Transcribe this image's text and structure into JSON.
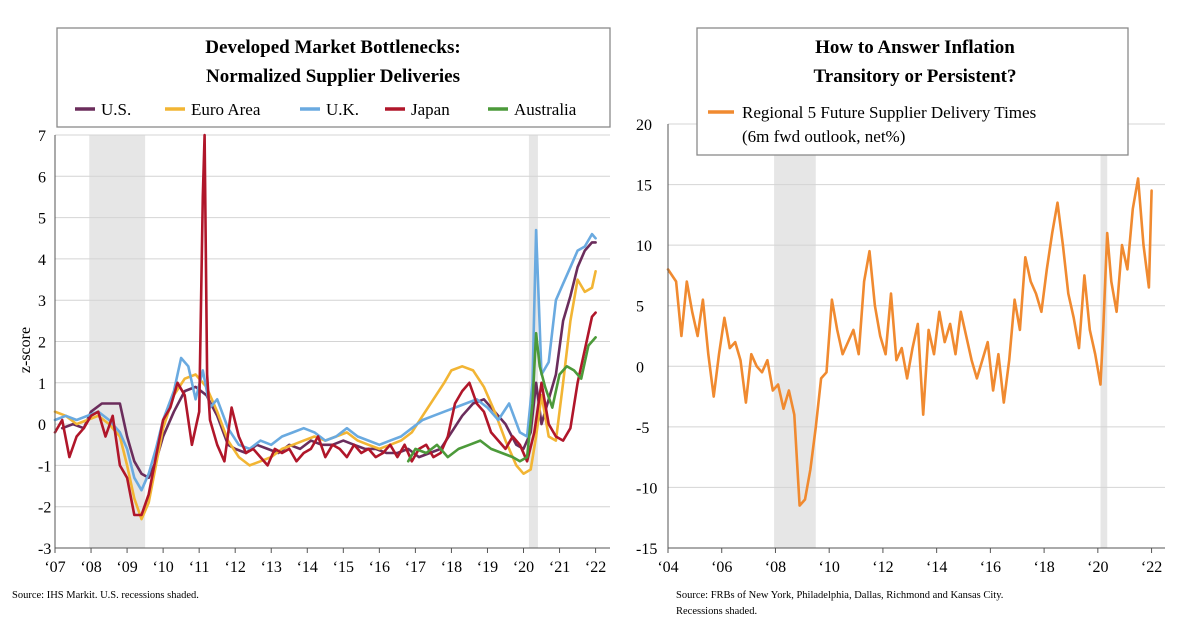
{
  "chart_data": [
    {
      "type": "line",
      "title": [
        "Developed Market Bottlenecks:",
        "Normalized Supplier Deliveries"
      ],
      "ylabel": "z-score",
      "xlabel": "",
      "xlim": [
        2007.0,
        2022.4
      ],
      "ylim": [
        -3,
        7
      ],
      "yticks": [
        -3,
        -2,
        -1,
        0,
        1,
        2,
        3,
        4,
        5,
        6,
        7
      ],
      "xtick_labels": [
        "‘07",
        "‘08",
        "‘09",
        "‘10",
        "‘11",
        "‘12",
        "‘13",
        "‘14",
        "‘15",
        "‘16",
        "‘17",
        "‘18",
        "‘19",
        "‘20",
        "‘21",
        "‘22"
      ],
      "xtick_values": [
        2007,
        2008,
        2009,
        2010,
        2011,
        2012,
        2013,
        2014,
        2015,
        2016,
        2017,
        2018,
        2019,
        2020,
        2021,
        2022
      ],
      "recessions": [
        [
          2007.95,
          2009.5
        ],
        [
          2020.15,
          2020.4
        ]
      ],
      "grid": true,
      "legend_position": "top",
      "source": "Source: IHS Markit. U.S. recessions shaded.",
      "series": [
        {
          "name": "U.S.",
          "color": "#6b2d5c",
          "x": [
            2007.2,
            2007.5,
            2007.8,
            2008.0,
            2008.3,
            2008.6,
            2008.8,
            2009.0,
            2009.2,
            2009.4,
            2009.6,
            2009.8,
            2010.0,
            2010.3,
            2010.6,
            2010.9,
            2011.2,
            2011.5,
            2011.8,
            2012.0,
            2012.3,
            2012.6,
            2012.9,
            2013.2,
            2013.5,
            2013.8,
            2014.1,
            2014.4,
            2014.7,
            2015.0,
            2015.3,
            2015.6,
            2015.9,
            2016.2,
            2016.5,
            2016.8,
            2017.1,
            2017.4,
            2017.7,
            2018.0,
            2018.3,
            2018.6,
            2018.9,
            2019.2,
            2019.5,
            2019.8,
            2020.0,
            2020.2,
            2020.35,
            2020.5,
            2020.7,
            2020.9,
            2021.1,
            2021.3,
            2021.5,
            2021.7,
            2021.9,
            2022.0
          ],
          "y": [
            -0.1,
            0.0,
            -0.1,
            0.3,
            0.5,
            0.5,
            0.5,
            -0.3,
            -0.9,
            -1.2,
            -1.3,
            -0.9,
            -0.3,
            0.3,
            0.8,
            0.9,
            0.7,
            0.2,
            -0.5,
            -0.6,
            -0.7,
            -0.5,
            -0.6,
            -0.7,
            -0.5,
            -0.6,
            -0.4,
            -0.5,
            -0.5,
            -0.4,
            -0.5,
            -0.6,
            -0.6,
            -0.7,
            -0.7,
            -0.6,
            -0.8,
            -0.7,
            -0.6,
            -0.2,
            0.2,
            0.5,
            0.6,
            0.3,
            0.0,
            -0.5,
            -0.6,
            -0.2,
            1.0,
            0.0,
            0.6,
            1.2,
            2.5,
            3.1,
            3.8,
            4.2,
            4.4,
            4.4
          ]
        },
        {
          "name": "Euro Area",
          "color": "#f2b534",
          "x": [
            2007.0,
            2007.3,
            2007.6,
            2007.9,
            2008.2,
            2008.5,
            2008.8,
            2009.0,
            2009.2,
            2009.4,
            2009.6,
            2009.8,
            2010.0,
            2010.3,
            2010.6,
            2010.9,
            2011.2,
            2011.5,
            2011.8,
            2012.1,
            2012.4,
            2012.7,
            2013.0,
            2013.3,
            2013.6,
            2013.9,
            2014.2,
            2014.5,
            2014.8,
            2015.1,
            2015.4,
            2015.7,
            2016.0,
            2016.3,
            2016.6,
            2016.9,
            2017.2,
            2017.5,
            2017.8,
            2018.0,
            2018.3,
            2018.6,
            2018.9,
            2019.2,
            2019.5,
            2019.8,
            2020.0,
            2020.2,
            2020.35,
            2020.5,
            2020.7,
            2020.9,
            2021.1,
            2021.3,
            2021.5,
            2021.7,
            2021.9,
            2022.0
          ],
          "y": [
            0.3,
            0.2,
            0.0,
            0.1,
            0.2,
            0.0,
            -0.3,
            -1.0,
            -1.8,
            -2.3,
            -1.9,
            -1.0,
            -0.1,
            0.7,
            1.1,
            1.2,
            0.9,
            0.3,
            -0.4,
            -0.8,
            -1.0,
            -0.9,
            -0.8,
            -0.6,
            -0.5,
            -0.4,
            -0.3,
            -0.4,
            -0.3,
            -0.2,
            -0.4,
            -0.5,
            -0.6,
            -0.5,
            -0.4,
            -0.2,
            0.2,
            0.6,
            1.0,
            1.3,
            1.4,
            1.3,
            0.9,
            0.3,
            -0.4,
            -1.0,
            -1.2,
            -1.1,
            -0.3,
            0.7,
            -0.3,
            -0.4,
            1.0,
            2.5,
            3.5,
            3.2,
            3.3,
            3.7
          ]
        },
        {
          "name": "U.K.",
          "color": "#6aaae0",
          "x": [
            2007.0,
            2007.3,
            2007.6,
            2007.9,
            2008.2,
            2008.5,
            2008.8,
            2009.0,
            2009.2,
            2009.4,
            2009.6,
            2009.8,
            2010.0,
            2010.3,
            2010.5,
            2010.7,
            2010.9,
            2011.1,
            2011.3,
            2011.5,
            2011.8,
            2012.1,
            2012.4,
            2012.7,
            2013.0,
            2013.3,
            2013.6,
            2013.9,
            2014.2,
            2014.5,
            2014.8,
            2015.1,
            2015.4,
            2015.7,
            2016.0,
            2016.3,
            2016.6,
            2016.9,
            2017.2,
            2017.5,
            2017.8,
            2018.1,
            2018.4,
            2018.7,
            2019.0,
            2019.3,
            2019.6,
            2019.9,
            2020.1,
            2020.25,
            2020.35,
            2020.5,
            2020.7,
            2020.9,
            2021.1,
            2021.3,
            2021.5,
            2021.7,
            2021.9,
            2022.0
          ],
          "y": [
            0.1,
            0.2,
            0.1,
            0.2,
            0.3,
            0.1,
            -0.2,
            -0.6,
            -1.3,
            -1.6,
            -1.2,
            -0.6,
            0.1,
            0.8,
            1.6,
            1.4,
            0.6,
            1.3,
            0.4,
            0.6,
            -0.1,
            -0.5,
            -0.6,
            -0.4,
            -0.5,
            -0.3,
            -0.2,
            -0.1,
            -0.2,
            -0.4,
            -0.3,
            -0.1,
            -0.3,
            -0.4,
            -0.5,
            -0.4,
            -0.3,
            -0.1,
            0.1,
            0.2,
            0.3,
            0.4,
            0.5,
            0.6,
            0.4,
            0.1,
            0.5,
            -0.2,
            -0.3,
            1.0,
            4.7,
            1.2,
            1.5,
            3.0,
            3.4,
            3.8,
            4.2,
            4.3,
            4.6,
            4.5
          ]
        },
        {
          "name": "Japan",
          "color": "#b0162a",
          "x": [
            2007.0,
            2007.2,
            2007.4,
            2007.6,
            2007.8,
            2008.0,
            2008.2,
            2008.4,
            2008.6,
            2008.8,
            2009.0,
            2009.2,
            2009.4,
            2009.6,
            2009.8,
            2010.0,
            2010.2,
            2010.4,
            2010.6,
            2010.8,
            2011.0,
            2011.1,
            2011.15,
            2011.22,
            2011.3,
            2011.5,
            2011.7,
            2011.9,
            2012.1,
            2012.3,
            2012.5,
            2012.7,
            2012.9,
            2013.1,
            2013.3,
            2013.5,
            2013.7,
            2013.9,
            2014.1,
            2014.3,
            2014.5,
            2014.7,
            2014.9,
            2015.1,
            2015.3,
            2015.5,
            2015.7,
            2015.9,
            2016.1,
            2016.3,
            2016.5,
            2016.7,
            2016.9,
            2017.1,
            2017.3,
            2017.5,
            2017.7,
            2017.9,
            2018.1,
            2018.3,
            2018.5,
            2018.7,
            2018.9,
            2019.1,
            2019.3,
            2019.5,
            2019.7,
            2019.9,
            2020.1,
            2020.3,
            2020.5,
            2020.7,
            2020.9,
            2021.1,
            2021.3,
            2021.5,
            2021.7,
            2021.9,
            2022.0
          ],
          "y": [
            -0.2,
            0.1,
            -0.8,
            -0.3,
            -0.1,
            0.2,
            0.3,
            -0.3,
            0.2,
            -1.0,
            -1.3,
            -2.2,
            -2.2,
            -1.7,
            -0.8,
            0.1,
            0.4,
            1.0,
            0.7,
            -0.5,
            0.3,
            5.5,
            7.0,
            1.2,
            0.1,
            -0.5,
            -0.9,
            0.4,
            -0.3,
            -0.7,
            -0.6,
            -0.8,
            -1.0,
            -0.6,
            -0.7,
            -0.6,
            -0.9,
            -0.7,
            -0.6,
            -0.3,
            -0.8,
            -0.5,
            -0.6,
            -0.8,
            -0.5,
            -0.7,
            -0.6,
            -0.8,
            -0.7,
            -0.5,
            -0.8,
            -0.5,
            -0.9,
            -0.6,
            -0.5,
            -0.8,
            -0.7,
            -0.3,
            0.5,
            0.8,
            1.0,
            0.5,
            0.3,
            -0.2,
            -0.4,
            -0.6,
            -0.3,
            -0.5,
            -0.9,
            -0.2,
            1.0,
            0.0,
            -0.3,
            -0.4,
            -0.1,
            1.0,
            1.8,
            2.6,
            2.7
          ]
        },
        {
          "name": "Australia",
          "color": "#4c9a3a",
          "x": [
            2016.8,
            2017.0,
            2017.3,
            2017.6,
            2017.9,
            2018.2,
            2018.5,
            2018.8,
            2019.1,
            2019.4,
            2019.7,
            2019.9,
            2020.1,
            2020.25,
            2020.35,
            2020.45,
            2020.6,
            2020.8,
            2021.0,
            2021.2,
            2021.4,
            2021.6,
            2021.8,
            2022.0
          ],
          "y": [
            -0.9,
            -0.6,
            -0.7,
            -0.5,
            -0.8,
            -0.6,
            -0.5,
            -0.4,
            -0.6,
            -0.7,
            -0.8,
            -0.9,
            -0.8,
            0.5,
            2.2,
            1.4,
            0.9,
            0.4,
            1.2,
            1.4,
            1.3,
            1.1,
            1.9,
            2.1
          ]
        }
      ]
    },
    {
      "type": "line",
      "title": [
        "How to Answer Inflation",
        "Transitory or Persistent?"
      ],
      "ylabel": "",
      "xlabel": "",
      "xlim": [
        2004.0,
        2022.5
      ],
      "ylim": [
        -15,
        20
      ],
      "yticks": [
        -15,
        -10,
        -5,
        0,
        5,
        10,
        15,
        20
      ],
      "xtick_labels": [
        "‘04",
        "‘06",
        "‘08",
        "‘10",
        "‘12",
        "‘14",
        "‘16",
        "‘18",
        "‘20",
        "‘22"
      ],
      "xtick_values": [
        2004,
        2006,
        2008,
        2010,
        2012,
        2014,
        2016,
        2018,
        2020,
        2022
      ],
      "recessions": [
        [
          2007.95,
          2009.5
        ],
        [
          2020.1,
          2020.35
        ]
      ],
      "grid": true,
      "legend_position": "top",
      "source": [
        "Source: FRBs of New York, Philadelphia, Dallas, Richmond and Kansas City.",
        "Recessions shaded."
      ],
      "series": [
        {
          "name": "Regional 5 Future Supplier Delivery Times",
          "name_line2": "(6m fwd outlook, net%)",
          "color": "#f08a30",
          "x": [
            2004.0,
            2004.3,
            2004.5,
            2004.7,
            2004.9,
            2005.1,
            2005.3,
            2005.5,
            2005.7,
            2005.9,
            2006.1,
            2006.3,
            2006.5,
            2006.7,
            2006.9,
            2007.1,
            2007.3,
            2007.5,
            2007.7,
            2007.9,
            2008.1,
            2008.3,
            2008.5,
            2008.7,
            2008.9,
            2009.1,
            2009.3,
            2009.5,
            2009.7,
            2009.9,
            2010.1,
            2010.3,
            2010.5,
            2010.7,
            2010.9,
            2011.1,
            2011.3,
            2011.5,
            2011.7,
            2011.9,
            2012.1,
            2012.3,
            2012.5,
            2012.7,
            2012.9,
            2013.1,
            2013.3,
            2013.5,
            2013.7,
            2013.9,
            2014.1,
            2014.3,
            2014.5,
            2014.7,
            2014.9,
            2015.1,
            2015.3,
            2015.5,
            2015.7,
            2015.9,
            2016.1,
            2016.3,
            2016.5,
            2016.7,
            2016.9,
            2017.1,
            2017.3,
            2017.5,
            2017.7,
            2017.9,
            2018.1,
            2018.3,
            2018.5,
            2018.7,
            2018.9,
            2019.1,
            2019.3,
            2019.5,
            2019.7,
            2019.9,
            2020.1,
            2020.2,
            2020.35,
            2020.5,
            2020.7,
            2020.9,
            2021.1,
            2021.3,
            2021.5,
            2021.7,
            2021.9,
            2022.0
          ],
          "y": [
            8.0,
            7.0,
            2.5,
            7.0,
            4.5,
            2.5,
            5.5,
            1.0,
            -2.5,
            1.0,
            4.0,
            1.5,
            2.0,
            0.5,
            -3.0,
            1.0,
            0.0,
            -0.5,
            0.5,
            -2.0,
            -1.5,
            -3.5,
            -2.0,
            -4.0,
            -11.5,
            -11.0,
            -8.5,
            -5.0,
            -1.0,
            -0.5,
            5.5,
            3.0,
            1.0,
            2.0,
            3.0,
            1.0,
            7.0,
            9.5,
            5.0,
            2.5,
            1.0,
            6.0,
            0.5,
            1.5,
            -1.0,
            1.5,
            3.5,
            -4.0,
            3.0,
            1.0,
            4.5,
            2.0,
            3.5,
            1.0,
            4.5,
            2.5,
            0.5,
            -1.0,
            0.5,
            2.0,
            -2.0,
            1.0,
            -3.0,
            0.5,
            5.5,
            3.0,
            9.0,
            7.0,
            6.0,
            4.5,
            8.0,
            11.0,
            13.5,
            10.0,
            6.0,
            4.0,
            1.5,
            7.5,
            3.0,
            1.0,
            -1.5,
            3.0,
            11.0,
            7.0,
            4.5,
            10.0,
            8.0,
            13.0,
            15.5,
            10.0,
            6.5,
            14.5
          ]
        }
      ]
    }
  ]
}
